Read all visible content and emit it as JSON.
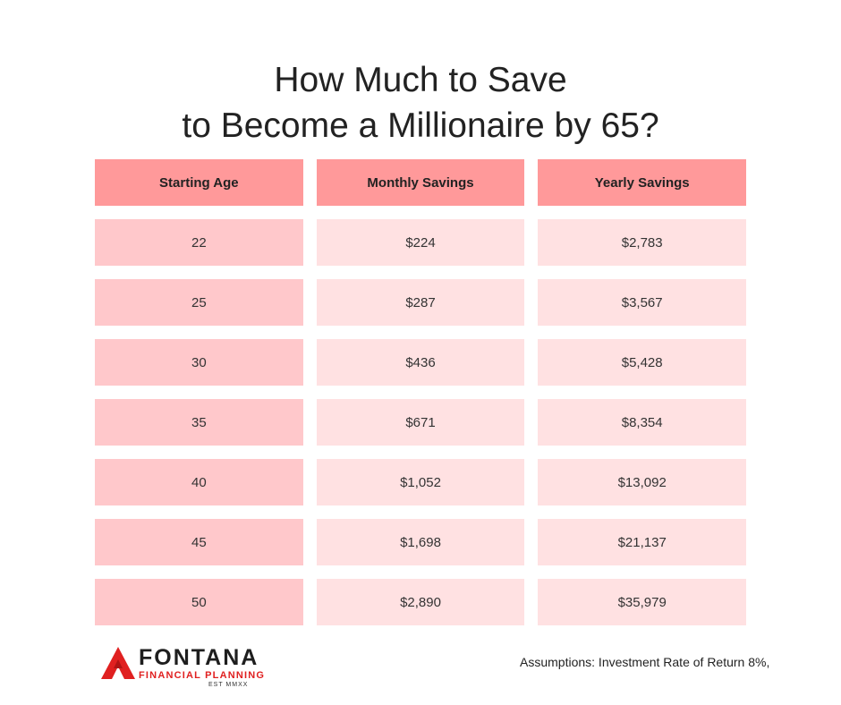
{
  "title": {
    "line1": "How Much to Save",
    "line2": "to Become a Millionaire by 65?"
  },
  "table": {
    "headers": [
      "Starting Age",
      "Monthly Savings",
      "Yearly Savings"
    ],
    "rows": [
      [
        "22",
        "$224",
        "$2,783"
      ],
      [
        "25",
        "$287",
        "$3,567"
      ],
      [
        "30",
        "$436",
        "$5,428"
      ],
      [
        "35",
        "$671",
        "$8,354"
      ],
      [
        "40",
        "$1,052",
        "$13,092"
      ],
      [
        "45",
        "$1,698",
        "$21,137"
      ],
      [
        "50",
        "$2,890",
        "$35,979"
      ]
    ]
  },
  "brand": {
    "name": "FONTANA",
    "subtitle": "FINANCIAL PLANNING",
    "est": "EST MMXX",
    "logo_icon": "red-triangle-logo-icon",
    "accent": "#e02020"
  },
  "footnote": "Assumptions: Investment Rate of Return 8%,",
  "colors": {
    "header_bg": "#ff999a",
    "age_cell_bg": "#ffc8cb",
    "value_cell_bg": "#ffe1e2"
  }
}
